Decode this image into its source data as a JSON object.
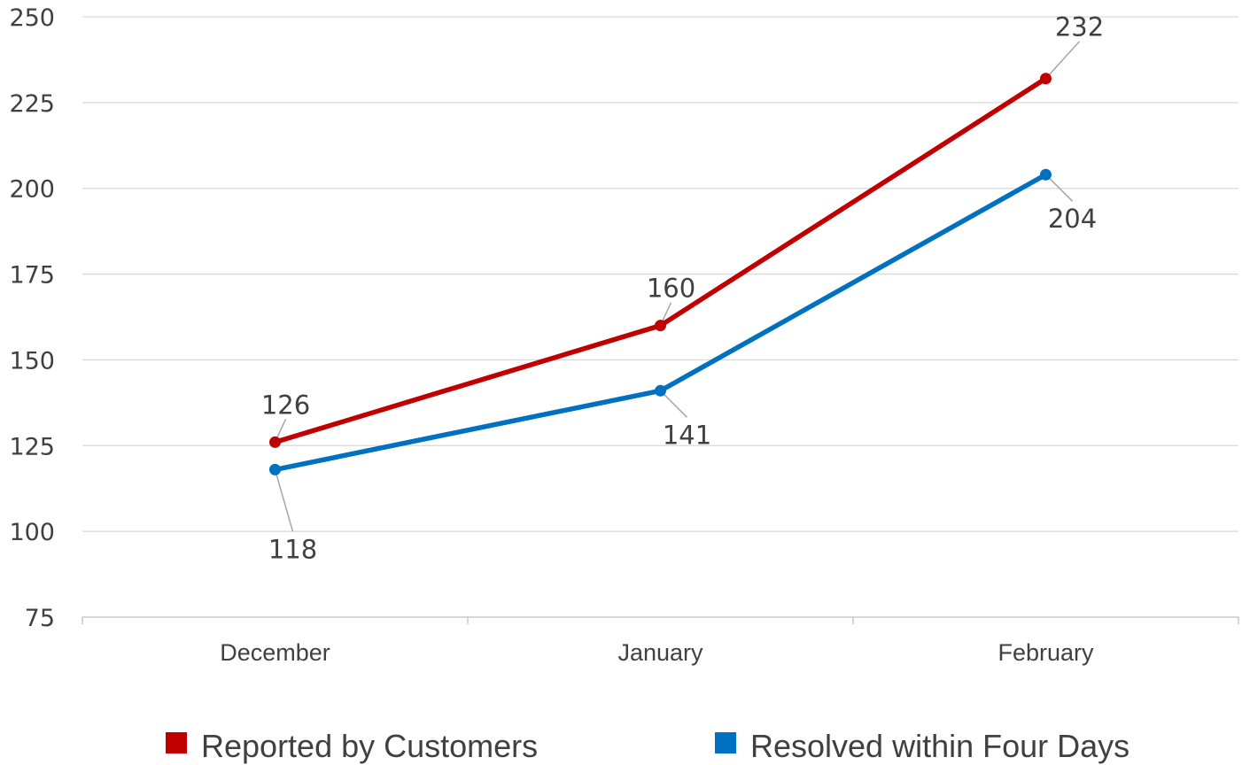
{
  "chart_data": {
    "type": "line",
    "categories": [
      "December",
      "January",
      "February"
    ],
    "series": [
      {
        "name": "Reported by Customers",
        "values": [
          126,
          160,
          232
        ],
        "color": "#c00000"
      },
      {
        "name": "Resolved within Four Days",
        "values": [
          118,
          141,
          204
        ],
        "color": "#0070c0"
      }
    ],
    "ylim": [
      75,
      250
    ],
    "yticks": [
      250,
      225,
      200,
      175,
      150,
      125,
      100,
      75
    ],
    "grid": true,
    "data_labels": true,
    "legend_position": "bottom",
    "title": "",
    "xlabel": "",
    "ylabel": ""
  }
}
